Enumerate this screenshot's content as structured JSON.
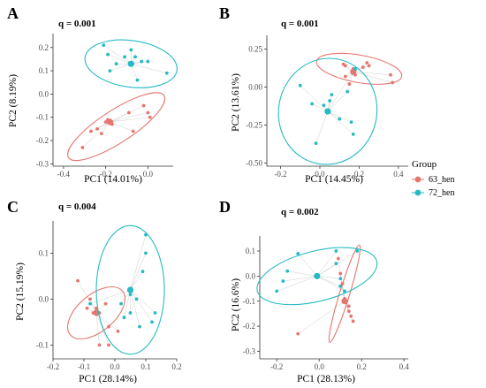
{
  "legend": {
    "title": "Group",
    "entries": [
      {
        "label": "63_hen",
        "color": "#E6766E"
      },
      {
        "label": "72_hen",
        "color": "#25BBC3"
      }
    ]
  },
  "colors": {
    "63_hen": "#E6766E",
    "72_hen": "#25BBC3",
    "centroid_line": "#999999"
  },
  "chart_data": [
    {
      "panel": "A",
      "type": "scatter",
      "annotation": "q = 0.001",
      "xlabel": "PC1 (14.01%)",
      "ylabel": "PC2 (8.19%)",
      "xlim": [
        -0.45,
        0.12
      ],
      "ylim": [
        -0.31,
        0.26
      ],
      "xticks": [
        -0.4,
        -0.2,
        0.0
      ],
      "yticks": [
        -0.3,
        -0.2,
        -0.1,
        0.0,
        0.1,
        0.2
      ],
      "xtick_labels": [
        "-0.4",
        "-0.2",
        "0.0"
      ],
      "ytick_labels": [
        "-0.3",
        "-0.2",
        "-0.1",
        "0.0",
        "0.1",
        "0.2"
      ],
      "series": [
        {
          "name": "63_hen",
          "points": [
            [
              -0.31,
              -0.23
            ],
            [
              -0.27,
              -0.16
            ],
            [
              -0.24,
              -0.15
            ],
            [
              -0.22,
              -0.17
            ],
            [
              -0.2,
              -0.12
            ],
            [
              -0.19,
              -0.11
            ],
            [
              -0.18,
              -0.12
            ],
            [
              -0.17,
              -0.13
            ],
            [
              -0.09,
              -0.08
            ],
            [
              -0.07,
              -0.16
            ],
            [
              -0.02,
              -0.05
            ],
            [
              0.0,
              -0.08
            ],
            [
              0.01,
              -0.1
            ]
          ],
          "centroid": [
            -0.18,
            -0.12
          ],
          "ellipse": {
            "cx": -0.15,
            "cy": -0.14,
            "rx": 0.27,
            "ry": 0.07,
            "angle": 33
          }
        },
        {
          "name": "72_hen",
          "points": [
            [
              -0.21,
              0.21
            ],
            [
              -0.19,
              0.17
            ],
            [
              -0.18,
              0.1
            ],
            [
              -0.15,
              0.13
            ],
            [
              -0.11,
              0.16
            ],
            [
              -0.08,
              0.19
            ],
            [
              -0.06,
              0.16
            ],
            [
              -0.05,
              0.06
            ],
            [
              -0.03,
              0.14
            ],
            [
              0.0,
              0.14
            ],
            [
              0.09,
              0.09
            ]
          ],
          "centroid": [
            -0.08,
            0.13
          ],
          "ellipse": {
            "cx": -0.08,
            "cy": 0.13,
            "rx": 0.22,
            "ry": 0.1,
            "angle": -8
          }
        }
      ]
    },
    {
      "panel": "B",
      "type": "scatter",
      "annotation": "q = 0.001",
      "xlabel": "PC1 (14.45%)",
      "ylabel": "PC2 (13.61%)",
      "xlim": [
        -0.27,
        0.45
      ],
      "ylim": [
        -0.52,
        0.34
      ],
      "xticks": [
        -0.2,
        0.0,
        0.2,
        0.4
      ],
      "yticks": [
        -0.5,
        -0.25,
        0.0,
        0.25
      ],
      "xtick_labels": [
        "-0.2",
        "0.0",
        "0.2",
        "0.4"
      ],
      "ytick_labels": [
        "-0.50",
        "-0.25",
        "0.00",
        "0.25"
      ],
      "series": [
        {
          "name": "63_hen",
          "points": [
            [
              0.12,
              0.15
            ],
            [
              0.13,
              0.07
            ],
            [
              0.15,
              0.02
            ],
            [
              0.17,
              0.12
            ],
            [
              0.18,
              0.08
            ],
            [
              0.22,
              0.13
            ],
            [
              0.24,
              0.16
            ],
            [
              0.25,
              0.14
            ],
            [
              0.36,
              0.08
            ],
            [
              0.37,
              0.03
            ],
            [
              0.13,
              0.14
            ]
          ],
          "centroid": [
            0.17,
            0.1
          ],
          "ellipse": {
            "cx": 0.2,
            "cy": 0.12,
            "rx": 0.22,
            "ry": 0.09,
            "angle": -10
          }
        },
        {
          "name": "72_hen",
          "points": [
            [
              -0.1,
              0.01
            ],
            [
              -0.04,
              -0.11
            ],
            [
              -0.02,
              -0.37
            ],
            [
              0.02,
              -0.12
            ],
            [
              0.05,
              -0.09
            ],
            [
              0.06,
              -0.05
            ],
            [
              0.1,
              -0.21
            ],
            [
              0.14,
              -0.03
            ],
            [
              0.16,
              -0.23
            ],
            [
              0.17,
              -0.31
            ],
            [
              0.18,
              0.12
            ]
          ],
          "centroid": [
            0.04,
            -0.16
          ],
          "ellipse": {
            "cx": 0.04,
            "cy": -0.16,
            "rx": 0.25,
            "ry": 0.35,
            "angle": -12
          }
        }
      ]
    },
    {
      "panel": "C",
      "type": "scatter",
      "annotation": "q = 0.004",
      "xlabel": "PC1 (28.14%)",
      "ylabel": "PC2 (15.19%)",
      "xlim": [
        -0.2,
        0.2
      ],
      "ylim": [
        -0.13,
        0.17
      ],
      "xticks": [
        -0.2,
        -0.1,
        0.0,
        0.1,
        0.2
      ],
      "yticks": [
        -0.1,
        0.0,
        0.1
      ],
      "xtick_labels": [
        "-0.2",
        "-0.1",
        "0.0",
        "0.1",
        "0.2"
      ],
      "ytick_labels": [
        "-0.1",
        "0.0",
        "0.1"
      ],
      "series": [
        {
          "name": "63_hen",
          "points": [
            [
              -0.12,
              0.04
            ],
            [
              -0.09,
              -0.02
            ],
            [
              -0.08,
              0.0
            ],
            [
              -0.07,
              -0.03
            ],
            [
              -0.06,
              -0.02
            ],
            [
              -0.05,
              -0.03
            ],
            [
              -0.05,
              -0.1
            ],
            [
              -0.03,
              -0.01
            ],
            [
              -0.02,
              -0.06
            ],
            [
              -0.02,
              -0.1
            ],
            [
              0.01,
              -0.07
            ]
          ],
          "centroid": [
            -0.06,
            -0.03
          ],
          "ellipse": {
            "cx": -0.06,
            "cy": -0.03,
            "rx": 0.11,
            "ry": 0.04,
            "angle": 40
          }
        },
        {
          "name": "72_hen",
          "points": [
            [
              -0.08,
              -0.01
            ],
            [
              0.02,
              -0.01
            ],
            [
              0.03,
              -0.04
            ],
            [
              0.05,
              -0.03
            ],
            [
              0.05,
              0.01
            ],
            [
              0.07,
              0.0
            ],
            [
              0.08,
              -0.06
            ],
            [
              0.09,
              0.06
            ],
            [
              0.1,
              0.1
            ],
            [
              0.1,
              0.14
            ],
            [
              0.12,
              -0.05
            ],
            [
              0.13,
              -0.03
            ]
          ],
          "centroid": [
            0.05,
            0.02
          ],
          "ellipse": {
            "cx": 0.05,
            "cy": 0.02,
            "rx": 0.11,
            "ry": 0.14,
            "angle": 0
          }
        }
      ]
    },
    {
      "panel": "D",
      "type": "scatter",
      "annotation": "q = 0.002",
      "xlabel": "PC1 (28.13%)",
      "ylabel": "PC2 (16.6%)",
      "xlim": [
        -0.28,
        0.42
      ],
      "ylim": [
        -0.33,
        0.16
      ],
      "xticks": [
        -0.2,
        0.0,
        0.2,
        0.4
      ],
      "yticks": [
        -0.3,
        -0.2,
        -0.1,
        0.0,
        0.1
      ],
      "xtick_labels": [
        "-0.2",
        "0.0",
        "0.2",
        "0.4"
      ],
      "ytick_labels": [
        "-0.3",
        "-0.2",
        "-0.1",
        "0.0",
        "0.1"
      ],
      "series": [
        {
          "name": "63_hen",
          "points": [
            [
              -0.1,
              -0.23
            ],
            [
              0.09,
              0.07
            ],
            [
              0.1,
              0.01
            ],
            [
              0.11,
              -0.03
            ],
            [
              0.12,
              -0.09
            ],
            [
              0.13,
              -0.1
            ],
            [
              0.14,
              -0.12
            ],
            [
              0.14,
              -0.14
            ],
            [
              0.15,
              -0.16
            ],
            [
              0.16,
              -0.18
            ]
          ],
          "centroid": [
            0.12,
            -0.1
          ],
          "ellipse": {
            "cx": 0.12,
            "cy": -0.07,
            "rx": 0.24,
            "ry": 0.02,
            "angle": 73
          }
        },
        {
          "name": "72_hen",
          "points": [
            [
              -0.2,
              -0.06
            ],
            [
              -0.17,
              -0.02
            ],
            [
              -0.15,
              0.02
            ],
            [
              -0.1,
              0.09
            ],
            [
              0.08,
              0.1
            ],
            [
              0.08,
              0.05
            ],
            [
              0.1,
              -0.01
            ],
            [
              0.1,
              -0.04
            ],
            [
              0.12,
              -0.06
            ],
            [
              0.18,
              0.1
            ]
          ],
          "centroid": [
            -0.01,
            0.0
          ],
          "ellipse": {
            "cx": -0.01,
            "cy": 0.0,
            "rx": 0.29,
            "ry": 0.1,
            "angle": 14
          }
        }
      ]
    }
  ]
}
